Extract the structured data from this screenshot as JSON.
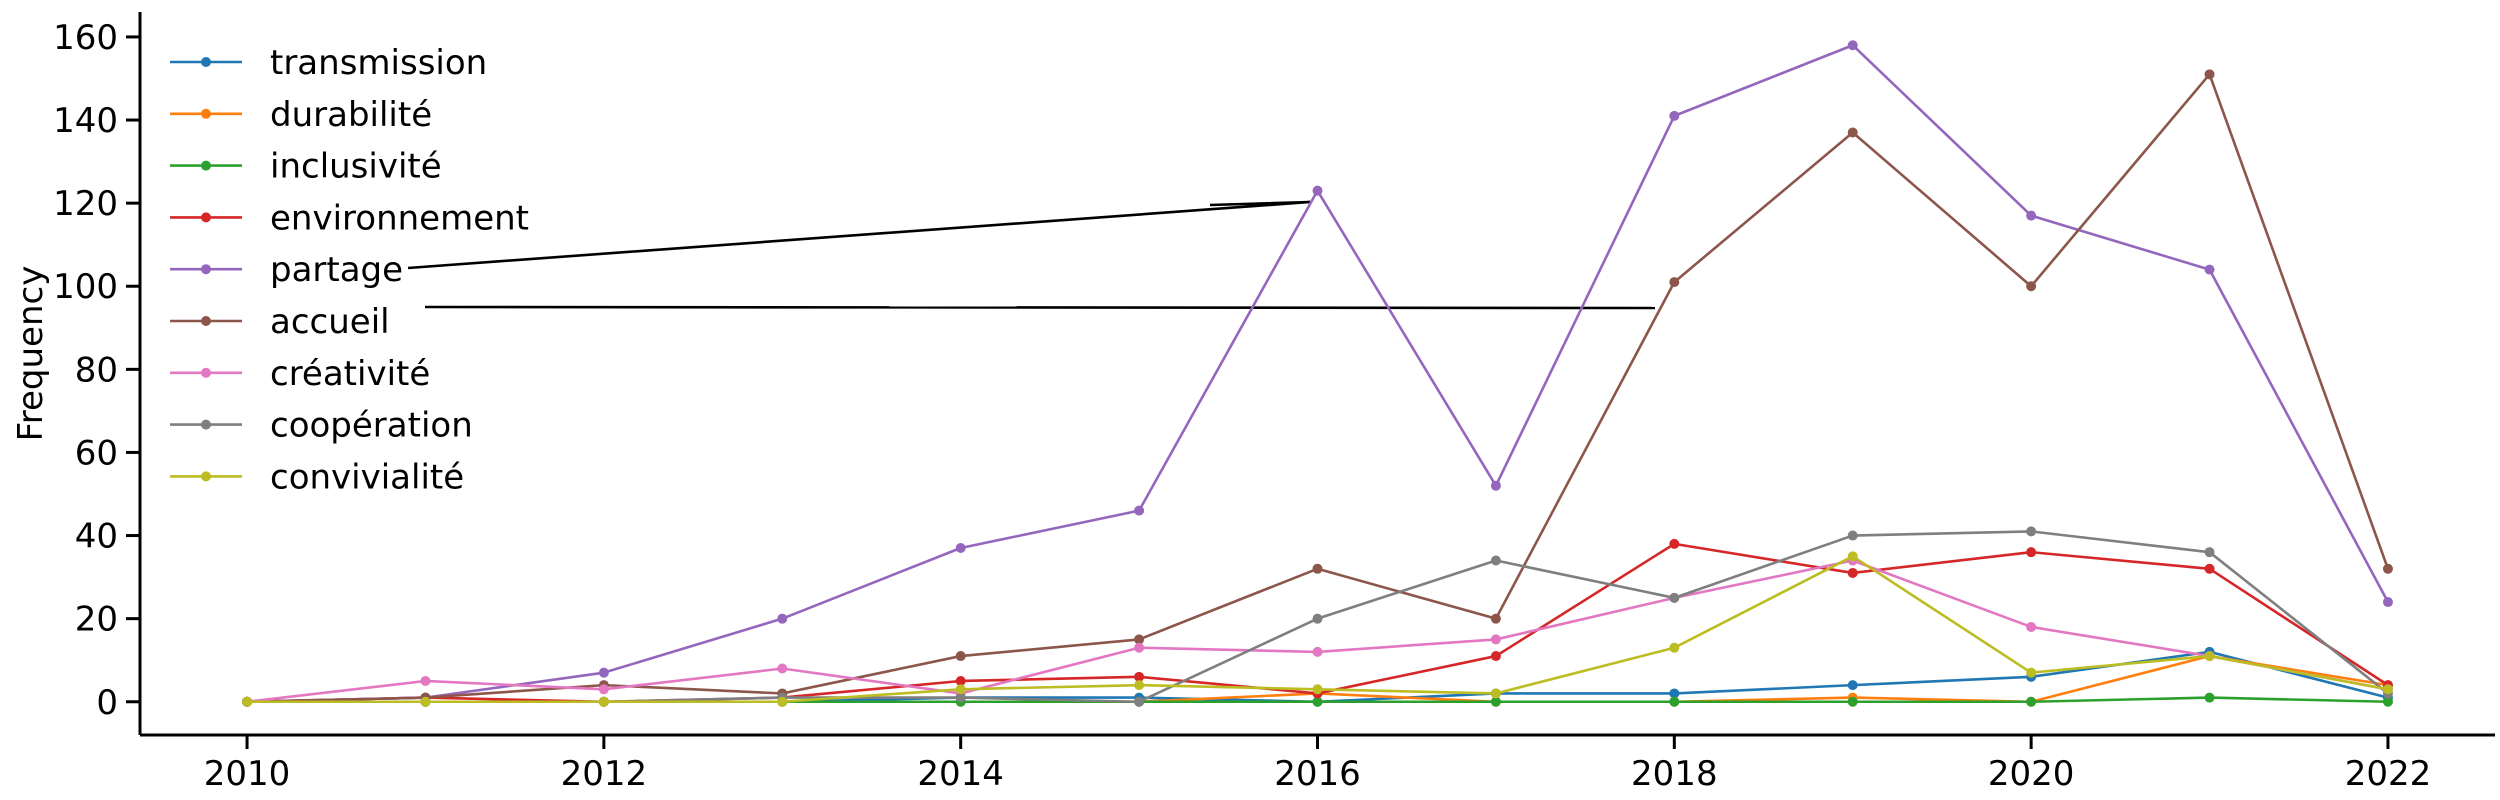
{
  "chart_data": {
    "type": "line",
    "ylabel": "Frequency",
    "xlabel": "",
    "title": "",
    "xlim": [
      2009.4,
      2022.6
    ],
    "ylim": [
      -8,
      166
    ],
    "x_ticks": [
      2010,
      2012,
      2014,
      2016,
      2018,
      2020,
      2022
    ],
    "y_ticks": [
      0,
      20,
      40,
      60,
      80,
      100,
      120,
      140,
      160
    ],
    "x": [
      2010,
      2011,
      2012,
      2013,
      2014,
      2015,
      2016,
      2017,
      2018,
      2019,
      2020,
      2021,
      2022
    ],
    "legend_position": "top-left",
    "grid": false,
    "series": [
      {
        "name": "transmission",
        "color": "#1f77b4",
        "values": [
          0,
          0,
          0,
          0,
          1,
          1,
          0,
          2,
          2,
          4,
          6,
          12,
          1
        ]
      },
      {
        "name": "durabilité",
        "color": "#ff7f0e",
        "values": [
          0,
          0,
          0,
          0,
          0,
          0,
          2,
          0,
          0,
          1,
          0,
          11,
          4
        ]
      },
      {
        "name": "inclusivité",
        "color": "#2ca02c",
        "values": [
          0,
          0,
          0,
          0,
          0,
          0,
          0,
          0,
          0,
          0,
          0,
          1,
          0
        ]
      },
      {
        "name": "environnement",
        "color": "#d62728",
        "values": [
          0,
          1,
          0,
          1,
          5,
          6,
          2,
          11,
          38,
          31,
          36,
          32,
          4
        ]
      },
      {
        "name": "partage",
        "color": "#9467bd",
        "values": [
          0,
          1,
          7,
          20,
          37,
          46,
          123,
          52,
          141,
          158,
          117,
          104,
          24
        ]
      },
      {
        "name": "accueil",
        "color": "#8c564b",
        "values": [
          0,
          1,
          4,
          2,
          11,
          15,
          32,
          20,
          101,
          137,
          100,
          151,
          32
        ]
      },
      {
        "name": "créativité",
        "color": "#e377c2",
        "values": [
          0,
          5,
          3,
          8,
          2,
          13,
          12,
          15,
          25,
          34,
          18,
          11,
          3
        ]
      },
      {
        "name": "coopération",
        "color": "#7f7f7f",
        "values": [
          0,
          0,
          0,
          1,
          1,
          0,
          20,
          34,
          25,
          40,
          41,
          36,
          2
        ]
      },
      {
        "name": "convivialité",
        "color": "#bcbd22",
        "values": [
          0,
          0,
          0,
          0,
          3,
          4,
          3,
          2,
          13,
          35,
          7,
          11,
          3
        ]
      }
    ]
  }
}
